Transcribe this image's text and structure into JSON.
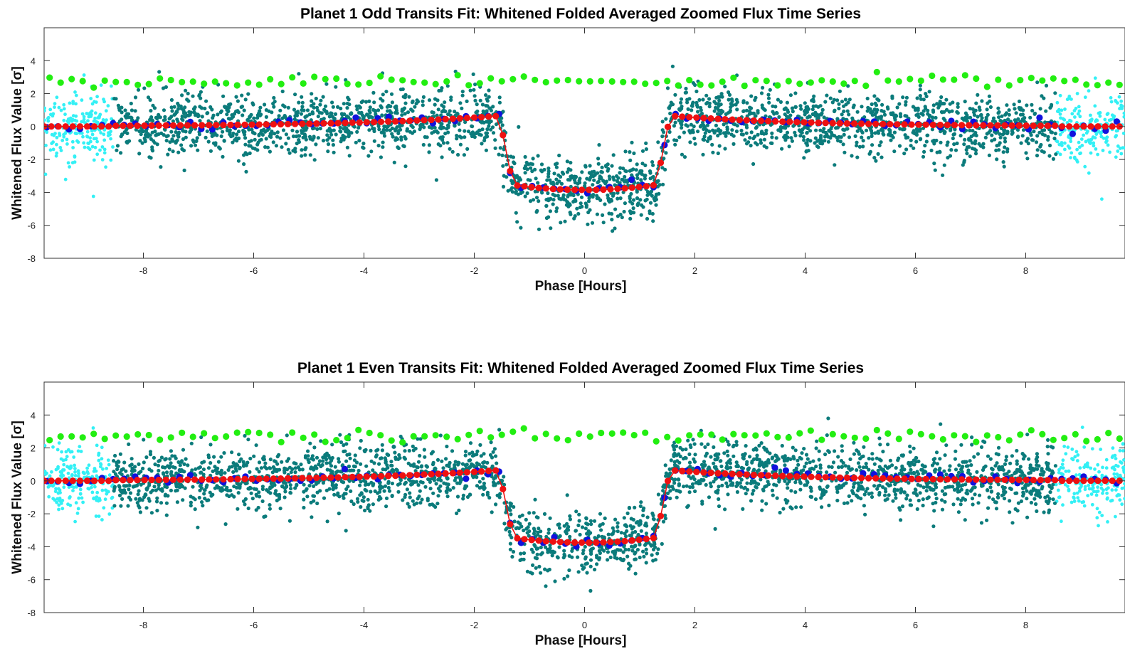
{
  "chart_data": [
    {
      "type": "scatter",
      "title": "Planet 1 Odd Transits Fit: Whitened Folded Averaged Zoomed Flux Time Series",
      "xlabel": "Phase [Hours]",
      "ylabel": "Whitened Flux Value [σ]",
      "xlim": [
        -9.8,
        9.8
      ],
      "ylim": [
        -8,
        6
      ],
      "xticks": [
        "-8",
        "-6",
        "-4",
        "-2",
        "0",
        "2",
        "4",
        "6",
        "8"
      ],
      "yticks": [
        "-8",
        "-6",
        "-4",
        "-2",
        "0",
        "2",
        "4"
      ],
      "grid": false,
      "legend": "none",
      "colors": {
        "raw": "#0b7b7b",
        "edge": "#33f0f5",
        "binned": "#1111dd",
        "fit": "#ee1111",
        "residual": "#22ee11"
      },
      "transit": {
        "depth": -3.85,
        "half_width_hours": 1.55,
        "ingress_hours": 0.25
      },
      "series": [
        {
          "key": "edge",
          "x_range": [
            [
              -9.8,
              -8.55
            ],
            [
              8.55,
              9.8
            ]
          ],
          "y_center": 0.0,
          "y_scatter": 1.05
        },
        {
          "key": "raw",
          "x_range": [
            [
              -8.55,
              8.55
            ]
          ],
          "y_center": "model",
          "y_scatter": 0.95
        },
        {
          "key": "binned",
          "x_step": 0.2,
          "y_center": "model",
          "y_scatter": 0.15
        },
        {
          "key": "fit",
          "x_step": 0.13,
          "y_center": "model"
        },
        {
          "key": "residual",
          "x_step": 0.2,
          "y_center": 2.75,
          "y_scatter": 0.18
        }
      ]
    },
    {
      "type": "scatter",
      "title": "Planet 1 Even Transits Fit: Whitened Folded Averaged Zoomed Flux Time Series",
      "xlabel": "Phase [Hours]",
      "ylabel": "Whitened Flux Value [σ]",
      "xlim": [
        -9.8,
        9.8
      ],
      "ylim": [
        -8,
        6
      ],
      "xticks": [
        "-8",
        "-6",
        "-4",
        "-2",
        "0",
        "2",
        "4",
        "6",
        "8"
      ],
      "yticks": [
        "-8",
        "-6",
        "-4",
        "-2",
        "0",
        "2",
        "4"
      ],
      "grid": false,
      "legend": "none",
      "colors": {
        "raw": "#0b7b7b",
        "edge": "#33f0f5",
        "binned": "#1111dd",
        "fit": "#ee1111",
        "residual": "#22ee11"
      },
      "transit": {
        "depth": -3.75,
        "half_width_hours": 1.55,
        "ingress_hours": 0.25
      },
      "series": [
        {
          "key": "edge",
          "x_range": [
            [
              -9.8,
              -8.55
            ],
            [
              8.55,
              9.8
            ]
          ],
          "y_center": 0.0,
          "y_scatter": 1.05
        },
        {
          "key": "raw",
          "x_range": [
            [
              -8.55,
              8.55
            ]
          ],
          "y_center": "model",
          "y_scatter": 0.95
        },
        {
          "key": "binned",
          "x_step": 0.2,
          "y_center": "model",
          "y_scatter": 0.15
        },
        {
          "key": "fit",
          "x_step": 0.13,
          "y_center": "model"
        },
        {
          "key": "residual",
          "x_step": 0.2,
          "y_center": 2.75,
          "y_scatter": 0.18
        }
      ]
    }
  ]
}
